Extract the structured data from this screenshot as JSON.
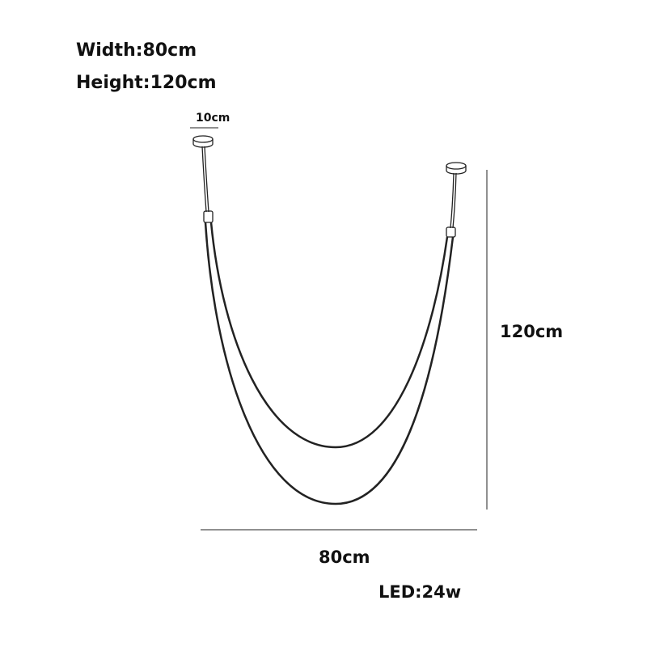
{
  "specs": {
    "width": "Width:80cm",
    "height": "Height:120cm",
    "led": "LED:24w"
  },
  "dimensions": {
    "canopy": "10cm",
    "height": "120cm",
    "width": "80cm"
  },
  "colors": {
    "line": "#222222",
    "text": "#111111",
    "background": "#ffffff"
  }
}
